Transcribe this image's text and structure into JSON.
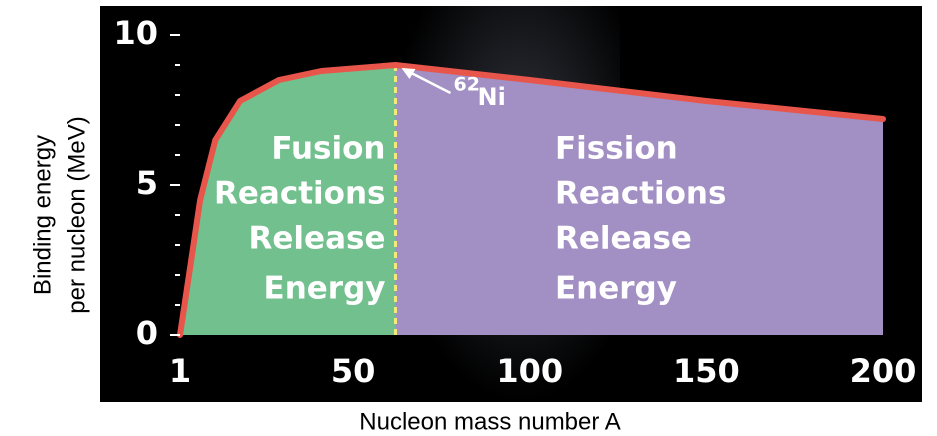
{
  "chart_data": {
    "type": "line",
    "x_label": "Nucleon mass number A",
    "y_label": [
      "Binding energy",
      "per nucleon (MeV)"
    ],
    "x": [
      1,
      3.8,
      6.7,
      11,
      18,
      29,
      41,
      62,
      100,
      150,
      200
    ],
    "series": [
      {
        "color": "#e8554a",
        "values": [
          0,
          2.2,
          4.5,
          6.5,
          7.8,
          8.5,
          8.8,
          9.0,
          8.5,
          7.8,
          7.2
        ]
      }
    ],
    "xlim": [
      1,
      200
    ],
    "xticks": [
      1,
      50,
      100,
      150,
      200
    ],
    "ylim": [
      0,
      10
    ],
    "yticks": [
      0,
      5,
      10
    ],
    "divider": {
      "x": 62,
      "label_sup": "62",
      "label": "Ni",
      "color": "#f4ea7a"
    },
    "regions": [
      {
        "lines": [
          "Fusion",
          "Reactions",
          "Release",
          "Energy"
        ],
        "color": "#73c08f"
      },
      {
        "lines": [
          "Fission",
          "Reactions",
          "Release",
          "Energy"
        ],
        "color": "#a28fc3"
      }
    ]
  }
}
